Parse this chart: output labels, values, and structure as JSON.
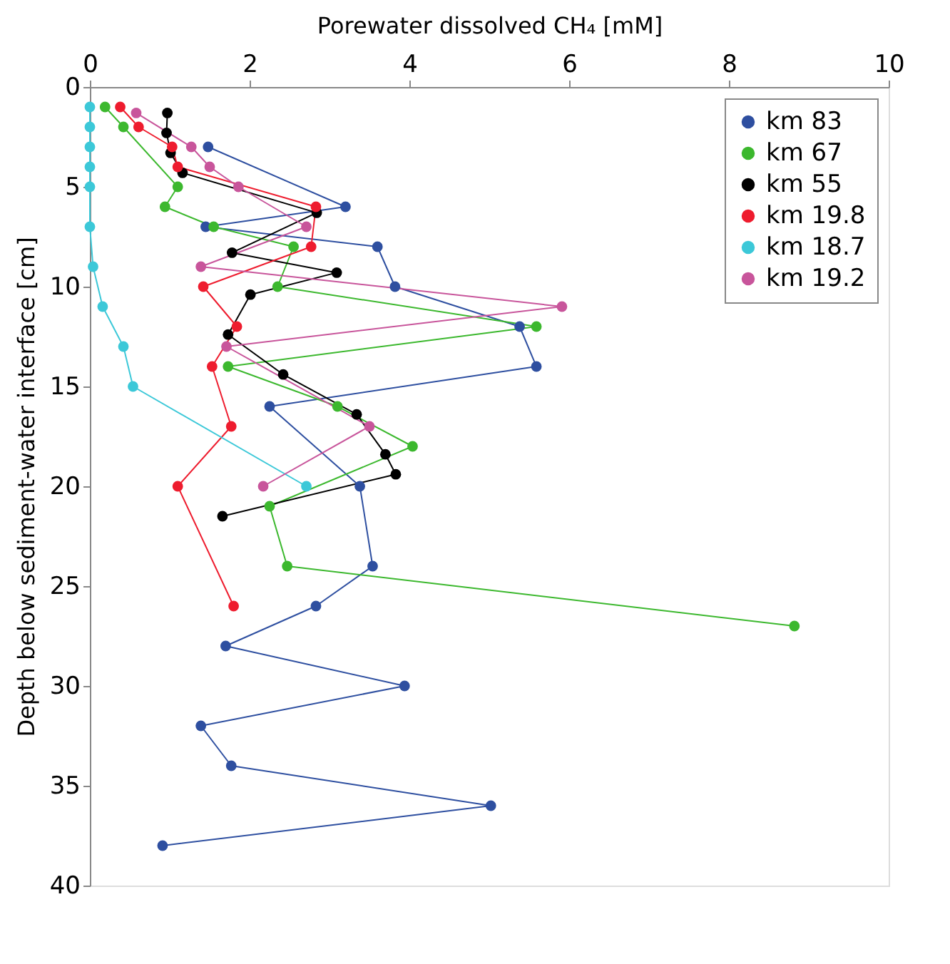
{
  "chart_data": {
    "type": "line",
    "xlabel": "Porewater dissolved CH₄  [mM]",
    "ylabel": "Depth below sediment-water interface [cm]",
    "xlim": [
      0,
      10
    ],
    "xticks": [
      0,
      2,
      4,
      6,
      8,
      10
    ],
    "ylim": [
      40,
      0
    ],
    "yticks": [
      0,
      5,
      10,
      15,
      20,
      25,
      30,
      35,
      40
    ],
    "grid": false,
    "legend": "top right",
    "marker": "circle",
    "line_style": "solid",
    "series": [
      {
        "name": "km 83",
        "color": "#2e4fa0",
        "x": [
          1.48,
          3.2,
          1.45,
          3.6,
          3.82,
          5.38,
          5.59,
          2.25,
          3.38,
          3.54,
          2.83,
          1.7,
          3.94,
          1.39,
          1.77,
          5.02,
          0.91
        ],
        "values": [
          3,
          6,
          7,
          8,
          10,
          12,
          14,
          16,
          20,
          24,
          26,
          28,
          30,
          32,
          34,
          36,
          38
        ]
      },
      {
        "name": "km 67",
        "color": "#3cb82e",
        "x": [
          0.19,
          0.42,
          1.1,
          0.94,
          1.55,
          2.55,
          2.35,
          5.59,
          1.73,
          3.1,
          4.04,
          2.25,
          2.47,
          8.82
        ],
        "values": [
          1,
          2,
          5,
          6,
          7,
          8,
          10,
          12,
          14,
          16,
          18,
          21,
          24,
          27
        ]
      },
      {
        "name": "km 55",
        "color": "#000000",
        "x": [
          0.97,
          0.96,
          1.01,
          1.16,
          2.84,
          1.78,
          3.09,
          2.01,
          1.73,
          2.42,
          3.34,
          3.7,
          3.83,
          1.66
        ],
        "values": [
          1.3,
          2.3,
          3.3,
          4.3,
          6.3,
          8.3,
          9.3,
          10.4,
          12.4,
          14.4,
          16.4,
          18.4,
          19.4,
          21.5
        ]
      },
      {
        "name": "km 19.8",
        "color": "#ee1c2e",
        "x": [
          0.38,
          0.61,
          1.03,
          1.1,
          2.83,
          2.77,
          1.42,
          1.84,
          1.53,
          1.77,
          1.1,
          1.8
        ],
        "values": [
          1,
          2,
          3,
          4,
          6,
          8,
          10,
          12,
          14,
          17,
          20,
          26
        ]
      },
      {
        "name": "km 18.7",
        "color": "#3cc8d8",
        "x": [
          0,
          0,
          0,
          0,
          0,
          0,
          0.04,
          0.16,
          0.42,
          0.54,
          2.71
        ],
        "values": [
          1,
          2,
          3,
          4,
          5,
          7,
          9,
          11,
          13,
          15,
          20
        ]
      },
      {
        "name": "km 19.2",
        "color": "#c8559b",
        "x": [
          0.58,
          1.27,
          1.5,
          1.86,
          2.71,
          1.39,
          5.91,
          1.71,
          3.5,
          2.17
        ],
        "values": [
          1.3,
          3,
          4,
          5,
          7,
          9,
          11,
          13,
          17,
          20
        ]
      }
    ]
  }
}
